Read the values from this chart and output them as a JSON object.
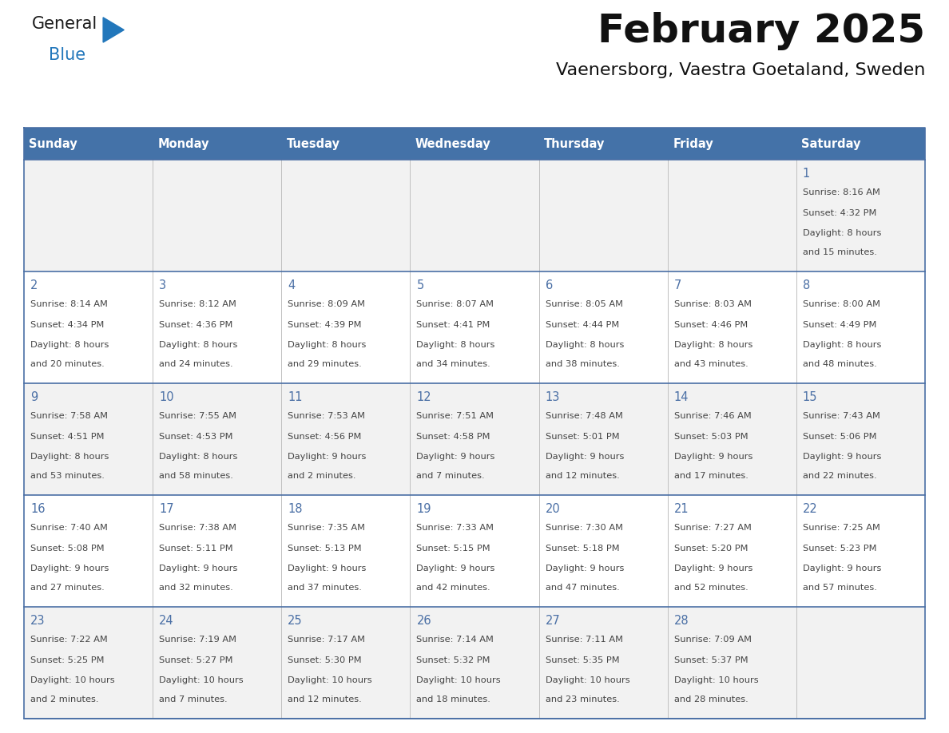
{
  "title": "February 2025",
  "subtitle": "Vaenersborg, Vaestra Goetaland, Sweden",
  "header_color": "#4472a8",
  "header_text_color": "#ffffff",
  "weekdays": [
    "Sunday",
    "Monday",
    "Tuesday",
    "Wednesday",
    "Thursday",
    "Friday",
    "Saturday"
  ],
  "row_even_color": "#f2f2f2",
  "row_odd_color": "#ffffff",
  "border_color": "#4a6fa5",
  "col_sep_color": "#c0c0c0",
  "text_color": "#444444",
  "day_num_color": "#4a6fa5",
  "days": [
    {
      "day": 1,
      "col": 6,
      "row": 0,
      "sunrise": "8:16 AM",
      "sunset": "4:32 PM",
      "dl1": "Daylight: 8 hours",
      "dl2": "and 15 minutes."
    },
    {
      "day": 2,
      "col": 0,
      "row": 1,
      "sunrise": "8:14 AM",
      "sunset": "4:34 PM",
      "dl1": "Daylight: 8 hours",
      "dl2": "and 20 minutes."
    },
    {
      "day": 3,
      "col": 1,
      "row": 1,
      "sunrise": "8:12 AM",
      "sunset": "4:36 PM",
      "dl1": "Daylight: 8 hours",
      "dl2": "and 24 minutes."
    },
    {
      "day": 4,
      "col": 2,
      "row": 1,
      "sunrise": "8:09 AM",
      "sunset": "4:39 PM",
      "dl1": "Daylight: 8 hours",
      "dl2": "and 29 minutes."
    },
    {
      "day": 5,
      "col": 3,
      "row": 1,
      "sunrise": "8:07 AM",
      "sunset": "4:41 PM",
      "dl1": "Daylight: 8 hours",
      "dl2": "and 34 minutes."
    },
    {
      "day": 6,
      "col": 4,
      "row": 1,
      "sunrise": "8:05 AM",
      "sunset": "4:44 PM",
      "dl1": "Daylight: 8 hours",
      "dl2": "and 38 minutes."
    },
    {
      "day": 7,
      "col": 5,
      "row": 1,
      "sunrise": "8:03 AM",
      "sunset": "4:46 PM",
      "dl1": "Daylight: 8 hours",
      "dl2": "and 43 minutes."
    },
    {
      "day": 8,
      "col": 6,
      "row": 1,
      "sunrise": "8:00 AM",
      "sunset": "4:49 PM",
      "dl1": "Daylight: 8 hours",
      "dl2": "and 48 minutes."
    },
    {
      "day": 9,
      "col": 0,
      "row": 2,
      "sunrise": "7:58 AM",
      "sunset": "4:51 PM",
      "dl1": "Daylight: 8 hours",
      "dl2": "and 53 minutes."
    },
    {
      "day": 10,
      "col": 1,
      "row": 2,
      "sunrise": "7:55 AM",
      "sunset": "4:53 PM",
      "dl1": "Daylight: 8 hours",
      "dl2": "and 58 minutes."
    },
    {
      "day": 11,
      "col": 2,
      "row": 2,
      "sunrise": "7:53 AM",
      "sunset": "4:56 PM",
      "dl1": "Daylight: 9 hours",
      "dl2": "and 2 minutes."
    },
    {
      "day": 12,
      "col": 3,
      "row": 2,
      "sunrise": "7:51 AM",
      "sunset": "4:58 PM",
      "dl1": "Daylight: 9 hours",
      "dl2": "and 7 minutes."
    },
    {
      "day": 13,
      "col": 4,
      "row": 2,
      "sunrise": "7:48 AM",
      "sunset": "5:01 PM",
      "dl1": "Daylight: 9 hours",
      "dl2": "and 12 minutes."
    },
    {
      "day": 14,
      "col": 5,
      "row": 2,
      "sunrise": "7:46 AM",
      "sunset": "5:03 PM",
      "dl1": "Daylight: 9 hours",
      "dl2": "and 17 minutes."
    },
    {
      "day": 15,
      "col": 6,
      "row": 2,
      "sunrise": "7:43 AM",
      "sunset": "5:06 PM",
      "dl1": "Daylight: 9 hours",
      "dl2": "and 22 minutes."
    },
    {
      "day": 16,
      "col": 0,
      "row": 3,
      "sunrise": "7:40 AM",
      "sunset": "5:08 PM",
      "dl1": "Daylight: 9 hours",
      "dl2": "and 27 minutes."
    },
    {
      "day": 17,
      "col": 1,
      "row": 3,
      "sunrise": "7:38 AM",
      "sunset": "5:11 PM",
      "dl1": "Daylight: 9 hours",
      "dl2": "and 32 minutes."
    },
    {
      "day": 18,
      "col": 2,
      "row": 3,
      "sunrise": "7:35 AM",
      "sunset": "5:13 PM",
      "dl1": "Daylight: 9 hours",
      "dl2": "and 37 minutes."
    },
    {
      "day": 19,
      "col": 3,
      "row": 3,
      "sunrise": "7:33 AM",
      "sunset": "5:15 PM",
      "dl1": "Daylight: 9 hours",
      "dl2": "and 42 minutes."
    },
    {
      "day": 20,
      "col": 4,
      "row": 3,
      "sunrise": "7:30 AM",
      "sunset": "5:18 PM",
      "dl1": "Daylight: 9 hours",
      "dl2": "and 47 minutes."
    },
    {
      "day": 21,
      "col": 5,
      "row": 3,
      "sunrise": "7:27 AM",
      "sunset": "5:20 PM",
      "dl1": "Daylight: 9 hours",
      "dl2": "and 52 minutes."
    },
    {
      "day": 22,
      "col": 6,
      "row": 3,
      "sunrise": "7:25 AM",
      "sunset": "5:23 PM",
      "dl1": "Daylight: 9 hours",
      "dl2": "and 57 minutes."
    },
    {
      "day": 23,
      "col": 0,
      "row": 4,
      "sunrise": "7:22 AM",
      "sunset": "5:25 PM",
      "dl1": "Daylight: 10 hours",
      "dl2": "and 2 minutes."
    },
    {
      "day": 24,
      "col": 1,
      "row": 4,
      "sunrise": "7:19 AM",
      "sunset": "5:27 PM",
      "dl1": "Daylight: 10 hours",
      "dl2": "and 7 minutes."
    },
    {
      "day": 25,
      "col": 2,
      "row": 4,
      "sunrise": "7:17 AM",
      "sunset": "5:30 PM",
      "dl1": "Daylight: 10 hours",
      "dl2": "and 12 minutes."
    },
    {
      "day": 26,
      "col": 3,
      "row": 4,
      "sunrise": "7:14 AM",
      "sunset": "5:32 PM",
      "dl1": "Daylight: 10 hours",
      "dl2": "and 18 minutes."
    },
    {
      "day": 27,
      "col": 4,
      "row": 4,
      "sunrise": "7:11 AM",
      "sunset": "5:35 PM",
      "dl1": "Daylight: 10 hours",
      "dl2": "and 23 minutes."
    },
    {
      "day": 28,
      "col": 5,
      "row": 4,
      "sunrise": "7:09 AM",
      "sunset": "5:37 PM",
      "dl1": "Daylight: 10 hours",
      "dl2": "and 28 minutes."
    }
  ],
  "num_rows": 5,
  "num_cols": 7,
  "logo_general_color": "#1a1a1a",
  "logo_blue_color": "#2277bb"
}
